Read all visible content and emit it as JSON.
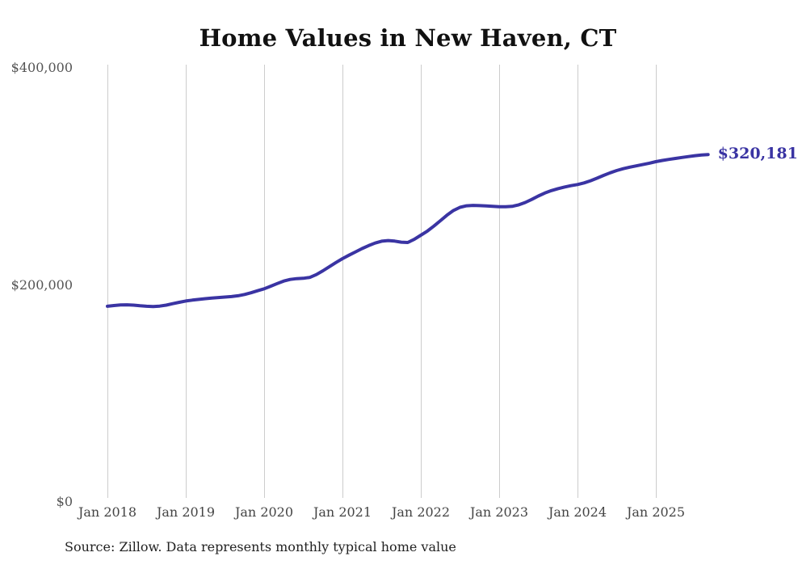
{
  "chart_data": {
    "type": "line",
    "title": "Home Values in New Haven, CT",
    "series_name": "Monthly typical home value",
    "xlabel": "",
    "ylabel": "",
    "ylim": [
      0,
      400000
    ],
    "grid": "vertical-only",
    "grid_color": "#cccccc",
    "line_color": "#3a34a3",
    "end_label": "$320,181",
    "latest_value": 320181,
    "y_ticks": [
      {
        "value": 0,
        "label": "$0"
      },
      {
        "value": 200000,
        "label": "$200,000"
      },
      {
        "value": 400000,
        "label": "$400,000"
      }
    ],
    "x_ticks": [
      "Jan 2018",
      "Jan 2019",
      "Jan 2020",
      "Jan 2021",
      "Jan 2022",
      "Jan 2023",
      "Jan 2024",
      "Jan 2025"
    ],
    "x": [
      "2018-01",
      "2018-02",
      "2018-03",
      "2018-04",
      "2018-05",
      "2018-06",
      "2018-07",
      "2018-08",
      "2018-09",
      "2018-10",
      "2018-11",
      "2018-12",
      "2019-01",
      "2019-02",
      "2019-03",
      "2019-04",
      "2019-05",
      "2019-06",
      "2019-07",
      "2019-08",
      "2019-09",
      "2019-10",
      "2019-11",
      "2019-12",
      "2020-01",
      "2020-02",
      "2020-03",
      "2020-04",
      "2020-05",
      "2020-06",
      "2020-07",
      "2020-08",
      "2020-09",
      "2020-10",
      "2020-11",
      "2020-12",
      "2021-01",
      "2021-02",
      "2021-03",
      "2021-04",
      "2021-05",
      "2021-06",
      "2021-07",
      "2021-08",
      "2021-09",
      "2021-10",
      "2021-11",
      "2021-12",
      "2022-01",
      "2022-02",
      "2022-03",
      "2022-04",
      "2022-05",
      "2022-06",
      "2022-07",
      "2022-08",
      "2022-09",
      "2022-10",
      "2022-11",
      "2022-12",
      "2023-01",
      "2023-02",
      "2023-03",
      "2023-04",
      "2023-05",
      "2023-06",
      "2023-07",
      "2023-08",
      "2023-09",
      "2023-10",
      "2023-11",
      "2023-12",
      "2024-01",
      "2024-02",
      "2024-03",
      "2024-04",
      "2024-05",
      "2024-06",
      "2024-07",
      "2024-08",
      "2024-09",
      "2024-10",
      "2024-11",
      "2024-12",
      "2025-01",
      "2025-02",
      "2025-03",
      "2025-04",
      "2025-05",
      "2025-06",
      "2025-07",
      "2025-08",
      "2025-09"
    ],
    "values": [
      180300,
      181000,
      181500,
      181700,
      181400,
      180800,
      180300,
      180100,
      180500,
      181400,
      182700,
      184000,
      185200,
      186000,
      186700,
      187300,
      187900,
      188400,
      188800,
      189300,
      190000,
      191200,
      192800,
      194600,
      196400,
      198800,
      201300,
      203600,
      205100,
      205800,
      206100,
      206900,
      209500,
      213000,
      216800,
      220600,
      224200,
      227400,
      230500,
      233500,
      236200,
      238600,
      240300,
      240900,
      240400,
      239400,
      239100,
      242000,
      245800,
      249600,
      254200,
      259200,
      264200,
      268600,
      271500,
      272900,
      273300,
      273100,
      272800,
      272400,
      272100,
      272000,
      272400,
      273800,
      276000,
      278800,
      281900,
      284700,
      286900,
      288700,
      290200,
      291500,
      292500,
      294000,
      296000,
      298400,
      300900,
      303300,
      305400,
      307100,
      308500,
      309700,
      310900,
      312200,
      313600,
      314700,
      315700,
      316600,
      317500,
      318300,
      319100,
      319800,
      320181
    ]
  },
  "source_note": "Source: Zillow. Data represents monthly typical home value"
}
